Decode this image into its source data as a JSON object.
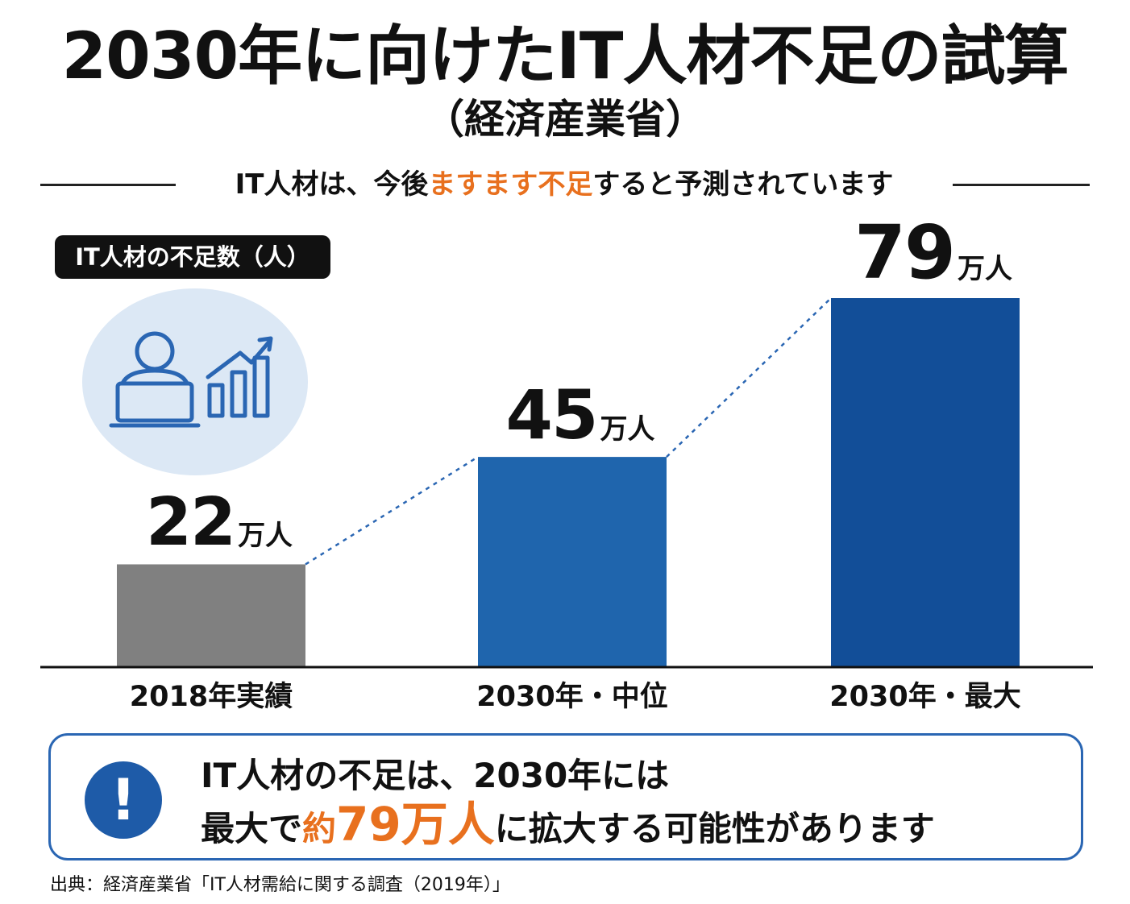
{
  "header": {
    "title": "2030年に向けたIT人材不足の試算",
    "subtitle": "（経済産業省）",
    "tagline_before": "IT人材は、今後",
    "tagline_highlight": "ますます不足",
    "tagline_after": "すると予測されています"
  },
  "badge": {
    "label": "IT人材の不足数（人）"
  },
  "icon": {
    "name": "person-laptop-growth-icon",
    "bg_color": "#dce8f5",
    "stroke_color": "#2a66b3"
  },
  "chart_data": {
    "type": "bar",
    "title": "2030年に向けたIT人材不足の試算",
    "ylabel": "IT人材の不足数（人）",
    "categories": [
      "2018年実績",
      "2030年・中位",
      "2030年・最大"
    ],
    "values": [
      22,
      45,
      79
    ],
    "value_unit": "万人",
    "value_labels": [
      "22",
      "45",
      "79"
    ],
    "colors": [
      "#808080",
      "#1f65ad",
      "#124e98"
    ],
    "ylim": [
      0,
      79
    ],
    "connector_style": "dotted",
    "grid": false,
    "legend": "none"
  },
  "callout": {
    "icon_name": "exclamation-icon",
    "line1": "IT人材の不足は、2030年には",
    "line2_before": "最大で",
    "line2_highlight_small": "約",
    "line2_highlight_big": "79万人",
    "line2_after": "に拡大する可能性があります"
  },
  "source": "出典：経済産業省「IT人材需給に関する調査（2019年）」"
}
